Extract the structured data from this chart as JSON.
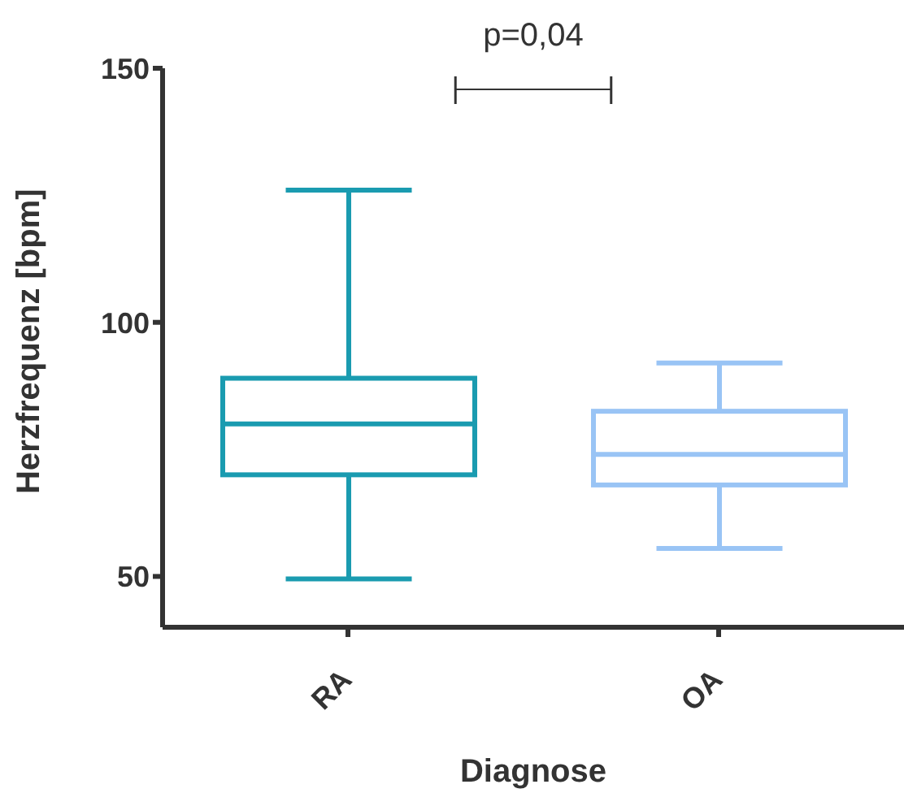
{
  "chart_data": {
    "type": "box",
    "xlabel": "Diagnose",
    "ylabel": "Herzfrequenz [bpm]",
    "categories": [
      "RA",
      "OA"
    ],
    "series": [
      {
        "color": "#1a9bb0",
        "boxes": [
          {
            "low": 49.5,
            "q1": 70,
            "median": 80,
            "q3": 89,
            "high": 126
          },
          null
        ]
      },
      {
        "color": "#99c4f5",
        "boxes": [
          null,
          {
            "low": 55.5,
            "q1": 68,
            "median": 74,
            "q3": 82.5,
            "high": 92
          }
        ]
      }
    ],
    "ylim": [
      40,
      150
    ],
    "yticks": [
      50,
      100,
      150
    ],
    "annotations": [
      "p=0,04"
    ]
  }
}
